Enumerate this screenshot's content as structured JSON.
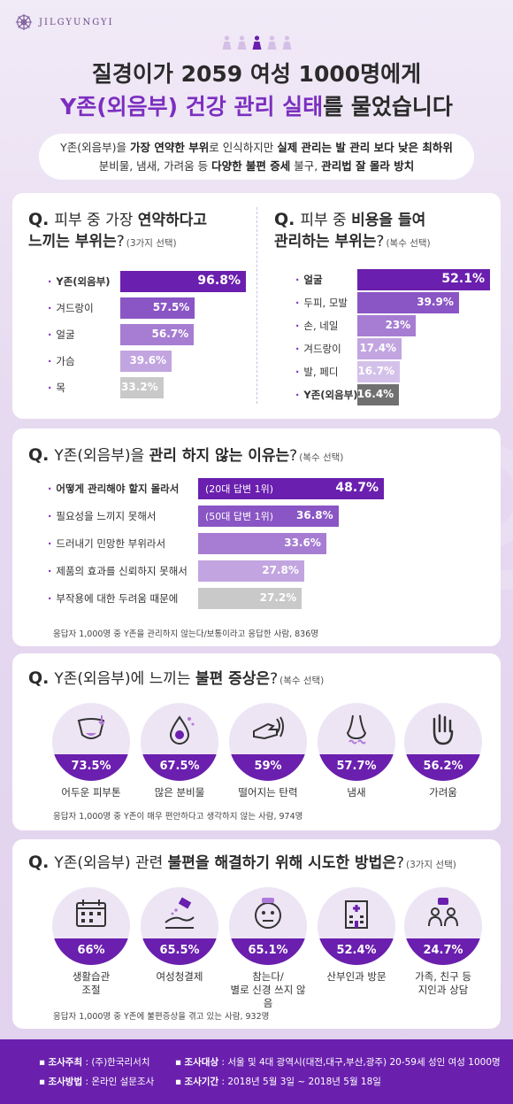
{
  "brand": "JILGYUNGYI",
  "title": {
    "line1": "질경이가 2059 여성 1000명에게",
    "line2_highlight": "Y존(외음부) 건강 관리 실태",
    "line2_rest": "를 물었습니다"
  },
  "summary": {
    "l1_a": "Y존(외음부)을 ",
    "l1_b": "가장 연약한 부위",
    "l1_c": "로 인식하지만 ",
    "l1_d": "실제 관리는 발 관리 보다 낮은 최하위",
    "l2_a": "분비물, 냄새, 가려움 등 ",
    "l2_b": "다양한 불편 증세",
    "l2_c": " 불구, ",
    "l2_d": "관리법 잘 몰라 방치"
  },
  "q1": {
    "qm": "Q.",
    "t1": "피부 중 가장 ",
    "t1b": "연약하다고",
    "t2b": "느끼는 부위는",
    "t2c": "?",
    "note": "(3가지 선택)"
  },
  "q2": {
    "qm": "Q.",
    "t1": "피부 중 ",
    "t1b": "비용을 들여",
    "t2b": "관리하는 부위는",
    "t2c": "?",
    "note": "(복수 선택)"
  },
  "q3": {
    "qm": "Q.",
    "t1": "Y존(외음부)을 ",
    "t1b": "관리 하지 않는 이유는",
    "t1c": "?",
    "note": "(복수 선택)",
    "footnote": "응답자 1,000명 중 Y존을 관리하지 않는다/보통이라고 응답한 사람, 836명"
  },
  "q4": {
    "qm": "Q.",
    "t1": "Y존(외음부)에 느끼는 ",
    "t1b": "불편 증상은",
    "t1c": "?",
    "note": "(복수 선택)",
    "footnote": "응답자 1,000명 중 Y존이 매우 편안하다고 생각하지 않는 사람, 974명"
  },
  "q5": {
    "qm": "Q.",
    "t1": "Y존(외음부) 관련 ",
    "t1b": "불편을 해결하기 위해 시도한 방법은",
    "t1c": "?",
    "note": "(3가지 선택)",
    "footnote": "응답자 1,000명 중 Y존에 불편증상을 겪고 있는 사람, 932명"
  },
  "footer": {
    "k1": "조사주최",
    "v1": "(주)한국리서치",
    "k2": "조사방법",
    "v2": "온라인 설문조사",
    "k3": "조사대상",
    "v3": "서울 및 4대 광역시(대전,대구,부산,광주) 20-59세 성인 여성 1000명",
    "k4": "조사기간",
    "v4": "2018년 5월 3일 ~ 2018년 5월 18일"
  },
  "chart_data": [
    {
      "type": "bar",
      "categories": [
        "Y존(외음부)",
        "겨드랑이",
        "얼굴",
        "가슴",
        "목"
      ],
      "values": [
        96.8,
        57.5,
        56.7,
        39.6,
        33.2
      ],
      "labels": [
        "96.8%",
        "57.5%",
        "56.7%",
        "39.6%",
        "33.2%"
      ],
      "colors": [
        "#6a1fae",
        "#8a55c4",
        "#a67dd2",
        "#c2a5e0",
        "#c9c9c9"
      ]
    },
    {
      "type": "bar",
      "categories": [
        "얼굴",
        "두피, 모발",
        "손, 네일",
        "겨드랑이",
        "발, 페디",
        "Y존(외음부)"
      ],
      "values": [
        52.1,
        39.9,
        23,
        17.4,
        16.7,
        16.4
      ],
      "labels": [
        "52.1%",
        "39.9%",
        "23%",
        "17.4%",
        "16.7%",
        "16.4%"
      ],
      "colors": [
        "#6a1fae",
        "#8a55c4",
        "#a67dd2",
        "#c2a5e0",
        "#d4c1e9",
        "#707070"
      ]
    },
    {
      "type": "bar",
      "categories": [
        "어떻게 관리해야 할지 몰라서",
        "필요성을 느끼지 못해서",
        "드러내기 민망한 부위라서",
        "제품의 효과를 신뢰하지 못해서",
        "부작용에 대한 두려움 때문에"
      ],
      "values": [
        48.7,
        36.8,
        33.6,
        27.8,
        27.2
      ],
      "labels": [
        "48.7%",
        "36.8%",
        "33.6%",
        "27.8%",
        "27.2%"
      ],
      "tags": [
        "(20대 답변 1위)",
        "(50대 답변 1위)",
        "",
        "",
        ""
      ],
      "colors": [
        "#6a1fae",
        "#8a55c4",
        "#a67dd2",
        "#c2a5e0",
        "#c9c9c9"
      ]
    },
    {
      "type": "bar",
      "categories": [
        "어두운 피부톤",
        "많은 분비물",
        "떨어지는 탄력",
        "냄새",
        "가려움"
      ],
      "values": [
        73.5,
        67.5,
        59,
        57.7,
        56.2
      ],
      "labels": [
        "73.5%",
        "67.5%",
        "59%",
        "57.7%",
        "56.2%"
      ],
      "icons": [
        "underwear-icon",
        "droplet-icon",
        "hand-touch-icon",
        "nose-icon",
        "scratch-hand-icon"
      ]
    },
    {
      "type": "bar",
      "categories": [
        "생활습관\n조절",
        "여성청결제",
        "참는다/\n별로 신경 쓰지 않음",
        "산부인과 방문",
        "가족, 친구 등\n지인과 상담"
      ],
      "values": [
        66,
        65.5,
        65.1,
        52.4,
        24.7
      ],
      "labels": [
        "66%",
        "65.5%",
        "65.1%",
        "52.4%",
        "24.7%"
      ],
      "icons": [
        "calendar-icon",
        "cleanser-icon",
        "neutral-face-icon",
        "hospital-icon",
        "conversation-icon"
      ]
    }
  ]
}
